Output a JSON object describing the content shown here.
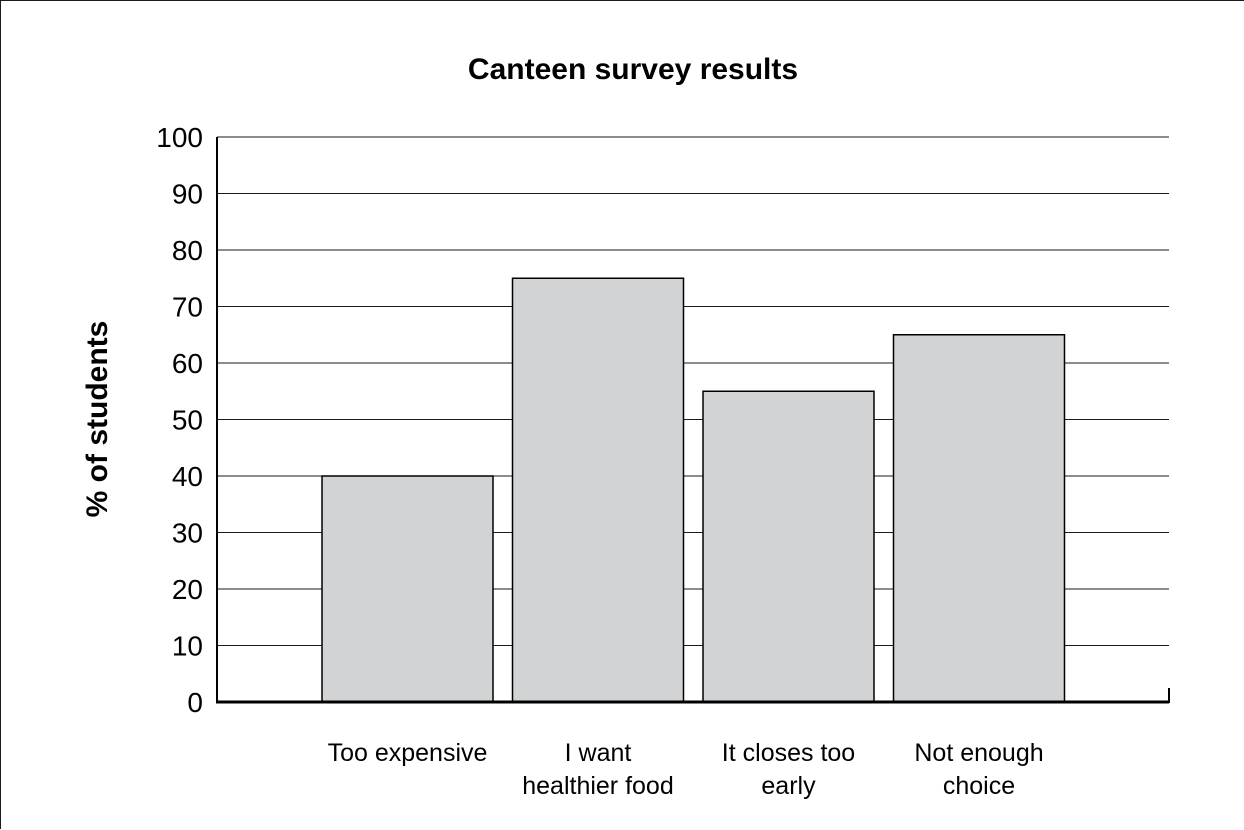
{
  "chart_data": {
    "type": "bar",
    "title": "Canteen survey results",
    "xlabel": "",
    "ylabel": "% of students",
    "ylim": [
      0,
      100
    ],
    "yticks": [
      "0",
      "10",
      "20",
      "30",
      "40",
      "50",
      "60",
      "70",
      "80",
      "90",
      "100"
    ],
    "categories": [
      [
        "Too expensive"
      ],
      [
        "I want",
        "healthier food"
      ],
      [
        "It closes too",
        "early"
      ],
      [
        "Not enough",
        "choice"
      ]
    ],
    "values": [
      40,
      75,
      55,
      65
    ],
    "grid": true,
    "colors": {
      "bar_fill": "#d1d3d4",
      "bar_stroke": "#000000",
      "grid": "#1a1a1a",
      "axis": "#000000"
    }
  }
}
